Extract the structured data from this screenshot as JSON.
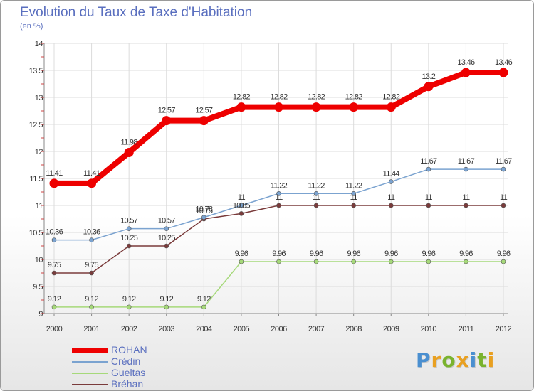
{
  "title": "Evolution du Taux de Taxe d'Habitation",
  "subtitle": "(en %)",
  "logo": {
    "text": "Proxiti",
    "letters": [
      {
        "ch": "P",
        "color": "#4a8fd0"
      },
      {
        "ch": "r",
        "color": "#e9a020"
      },
      {
        "ch": "o",
        "color": "#7ab32e"
      },
      {
        "ch": "x",
        "color": "#e9a020"
      },
      {
        "ch": "i",
        "color": "#4a8fd0"
      },
      {
        "ch": "t",
        "color": "#7ab32e"
      },
      {
        "ch": "i",
        "color": "#e9a020"
      }
    ]
  },
  "chart_data": {
    "type": "line",
    "title": "Evolution du Taux de Taxe d'Habitation",
    "ylabel": "(en %)",
    "x": [
      "2000",
      "2001",
      "2002",
      "2003",
      "2004",
      "2005",
      "2006",
      "2007",
      "2008",
      "2009",
      "2010",
      "2011",
      "2012"
    ],
    "ylim": [
      9,
      14
    ],
    "yticks": [
      "9",
      "9.5",
      "10",
      "10.5",
      "11",
      "11.5",
      "12",
      "12.5",
      "13",
      "13.5",
      "14"
    ],
    "grid": true,
    "legend_position": "bottom-left",
    "series": [
      {
        "name": "ROHAN",
        "color": "#ee0000",
        "values": [
          11.41,
          11.41,
          11.98,
          12.57,
          12.57,
          12.82,
          12.82,
          12.82,
          12.82,
          12.82,
          13.2,
          13.46,
          13.46
        ],
        "labels": [
          "11.41",
          "11.41",
          "11.98",
          "12.57",
          "12.57",
          "12.82",
          "12.82",
          "12.82",
          "12.82",
          "12.82",
          "13.2",
          "13.46",
          "13.46"
        ]
      },
      {
        "name": "Crédin",
        "color": "#7ba3d0",
        "values": [
          10.36,
          10.36,
          10.57,
          10.57,
          10.78,
          11,
          11.22,
          11.22,
          11.22,
          11.44,
          11.67,
          11.67,
          11.67
        ],
        "labels": [
          "10.36",
          "10.36",
          "10.57",
          "10.57",
          "10.78",
          "11",
          "11.22",
          "11.22",
          "11.22",
          "11.44",
          "11.67",
          "11.67",
          "11.67"
        ]
      },
      {
        "name": "Gueltas",
        "color": "#a6d97a",
        "values": [
          9.12,
          9.12,
          9.12,
          9.12,
          9.12,
          9.96,
          9.96,
          9.96,
          9.96,
          9.96,
          9.96,
          9.96,
          9.96
        ],
        "labels": [
          "9.12",
          "9.12",
          "9.12",
          "9.12",
          "9.12",
          "9.96",
          "9.96",
          "9.96",
          "9.96",
          "9.96",
          "9.96",
          "9.96",
          "9.96"
        ]
      },
      {
        "name": "Bréhan",
        "color": "#7a3b3b",
        "values": [
          9.75,
          9.75,
          10.25,
          10.25,
          10.75,
          10.85,
          11,
          11,
          11,
          11,
          11,
          11,
          11
        ],
        "labels": [
          "9.75",
          "9.75",
          "10.25",
          "10.25",
          "10.75",
          "10.85",
          "11",
          "11",
          "11",
          "11",
          "11",
          "11",
          "11"
        ]
      }
    ]
  }
}
